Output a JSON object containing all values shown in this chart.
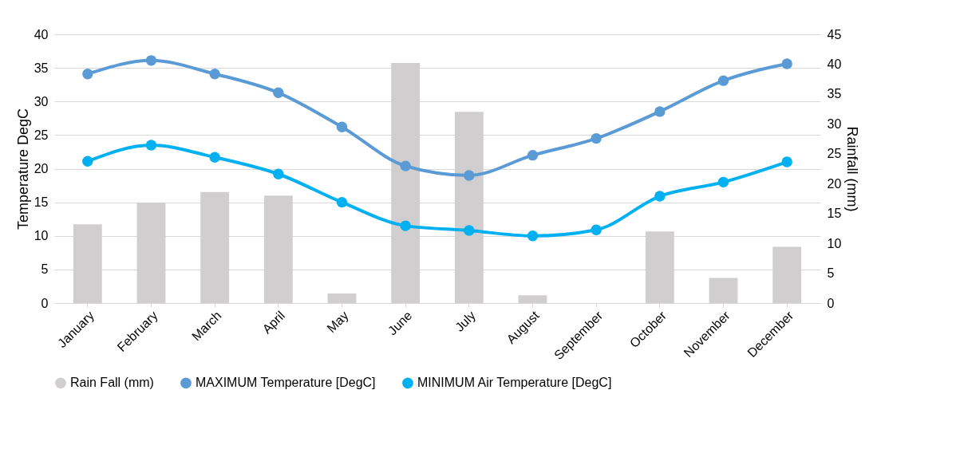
{
  "chart_data": {
    "type": "line",
    "categories": [
      "January",
      "February",
      "March",
      "April",
      "May",
      "June",
      "July",
      "August",
      "September",
      "October",
      "November",
      "December"
    ],
    "ylabel": "Temperature DegC",
    "y2label": "Rainfall (mm)",
    "ylim": [
      0,
      40
    ],
    "yticks": [
      0,
      5,
      10,
      15,
      20,
      25,
      30,
      35,
      40
    ],
    "y2lim": [
      0,
      45
    ],
    "y2ticks": [
      0,
      5,
      10,
      15,
      20,
      25,
      30,
      35,
      40,
      45
    ],
    "grid": "y",
    "legend": "bottom",
    "marker": "circle",
    "line_style": "solid",
    "series": [
      {
        "name": "Rain Fall (mm)",
        "type": "bar",
        "axis": "y2",
        "color": "#d0cece",
        "values": [
          13.2,
          16.8,
          18.6,
          18.0,
          1.6,
          40.2,
          32.0,
          1.3,
          0,
          12.0,
          4.2,
          9.4
        ]
      },
      {
        "name": "MAXIMUM Temperature [DegC]",
        "color": "#5b9bd5",
        "values": [
          34.1,
          36.1,
          34.1,
          31.3,
          26.2,
          20.4,
          19.0,
          22.0,
          24.5,
          28.5,
          33.1,
          35.6
        ]
      },
      {
        "name": "MINIMUM Air Temperature [DegC]",
        "color": "#00b0f0",
        "values": [
          21.1,
          23.5,
          21.7,
          19.2,
          15.0,
          11.5,
          10.8,
          10.0,
          10.9,
          15.9,
          18.0,
          21.0
        ]
      }
    ]
  }
}
